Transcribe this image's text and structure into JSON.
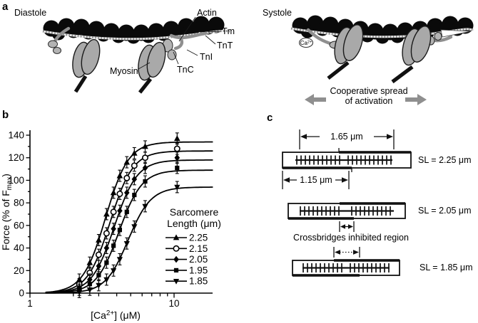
{
  "panels": {
    "a": "a",
    "b": "b",
    "c": "c"
  },
  "panel_a": {
    "diastole": {
      "title": "Diastole",
      "labels": {
        "actin": "Actin",
        "tm": "Tm",
        "tnt": "TnT",
        "tni": "TnI",
        "tnc": "TnC",
        "myosin": "Myosin"
      }
    },
    "systole": {
      "title": "Systole",
      "ca_parts": [
        {
          "t": "Ca"
        },
        {
          "t": "2+",
          "sup": true
        }
      ],
      "caption_line1": "Cooperative spread",
      "caption_line2": "of activation"
    }
  },
  "panel_c": {
    "measure_top": "1.65 μm",
    "measure_mid": "1.15 μm",
    "crossbridges_label": "Crossbridges inhibited region",
    "sl_labels": [
      "SL = 2.25 μm",
      "SL = 2.05 μm",
      "SL = 1.85 μm"
    ]
  },
  "chart_data": {
    "type": "line",
    "title": "",
    "xlabel": "[Ca2+] (μM)",
    "xlabel_parts": [
      {
        "t": "[Ca"
      },
      {
        "t": "2+",
        "sup": true
      },
      {
        "t": "] (μM)"
      }
    ],
    "ylabel": "Force (% of Fmax)",
    "ylabel_parts": [
      {
        "t": "Force (% of F"
      },
      {
        "t": "max",
        "sub": true
      },
      {
        "t": ")"
      }
    ],
    "x_scale": "log",
    "xlim": [
      1,
      20
    ],
    "ylim": [
      0,
      140
    ],
    "x_ticks_major": [
      1,
      10
    ],
    "x_ticks_minor": [
      2,
      3,
      4,
      5,
      6,
      7,
      8,
      9
    ],
    "y_ticks_major": [
      0,
      20,
      40,
      60,
      80,
      100,
      120,
      140
    ],
    "y_ticks_minor": [
      10,
      30,
      50,
      70,
      90,
      110,
      130
    ],
    "grid": false,
    "legend_position": "inside-right",
    "legend_title_lines": [
      "Sarcomere",
      "Length (μm)"
    ],
    "series": [
      {
        "name": "2.25",
        "marker": "triangle-up",
        "plateau_fmax": 134,
        "ec50_uM": 3.35,
        "hill_n": 5.5,
        "err": 5,
        "x": [
          2.2,
          2.6,
          3.0,
          3.4,
          3.8,
          4.2,
          4.7,
          5.3,
          6.3,
          10.5
        ],
        "y": [
          12,
          27,
          47,
          70,
          89,
          104,
          116,
          124,
          130,
          137
        ]
      },
      {
        "name": "2.15",
        "marker": "circle-open",
        "plateau_fmax": 126,
        "ec50_uM": 3.6,
        "hill_n": 5.5,
        "err": 5,
        "x": [
          2.2,
          2.6,
          3.0,
          3.4,
          3.8,
          4.2,
          4.7,
          5.3,
          6.3,
          10.5
        ],
        "y": [
          8,
          18,
          34,
          53,
          72,
          88,
          102,
          113,
          120,
          128
        ]
      },
      {
        "name": "2.05",
        "marker": "diamond",
        "plateau_fmax": 118,
        "ec50_uM": 3.85,
        "hill_n": 5.5,
        "err": 5,
        "x": [
          2.2,
          2.6,
          3.0,
          3.4,
          3.8,
          4.2,
          4.7,
          5.3,
          6.3,
          10.5
        ],
        "y": [
          5,
          12,
          24,
          40,
          57,
          73,
          89,
          101,
          111,
          120
        ]
      },
      {
        "name": "1.95",
        "marker": "square",
        "plateau_fmax": 109,
        "ec50_uM": 4.15,
        "hill_n": 5.5,
        "err": 5,
        "x": [
          2.2,
          2.6,
          3.0,
          3.4,
          3.8,
          4.2,
          4.7,
          5.3,
          6.3,
          10.5
        ],
        "y": [
          3,
          8,
          16,
          27,
          42,
          56,
          72,
          87,
          99,
          111
        ]
      },
      {
        "name": "1.85",
        "marker": "triangle-down",
        "plateau_fmax": 94,
        "ec50_uM": 4.8,
        "hill_n": 5.5,
        "err": 5,
        "x": [
          2.2,
          2.6,
          3.0,
          3.4,
          3.8,
          4.2,
          4.7,
          5.3,
          6.3,
          10.5
        ],
        "y": [
          1,
          3,
          7,
          12,
          20,
          30,
          44,
          59,
          77,
          94
        ]
      }
    ]
  }
}
